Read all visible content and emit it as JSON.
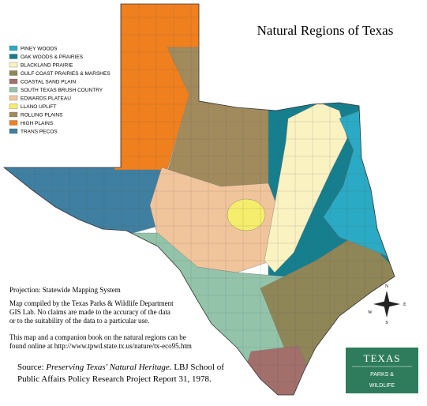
{
  "title": "Natural Regions of Texas",
  "legend": [
    {
      "label": "PINEY WOODS",
      "color": "#2aaac4"
    },
    {
      "label": "OAK WOODS & PRAIRIES",
      "color": "#157f8e"
    },
    {
      "label": "BLACKLAND PRAIRIE",
      "color": "#fbf2c2"
    },
    {
      "label": "GULF COAST PRAIRIES & MARSHES",
      "color": "#8e8656"
    },
    {
      "label": "COASTAL SAND PLAIN",
      "color": "#a36f6b"
    },
    {
      "label": "SOUTH TEXAS BRUSH COUNTRY",
      "color": "#93c4aa"
    },
    {
      "label": "EDWARDS PLATEAU",
      "color": "#f1c59c"
    },
    {
      "label": "LLANO UPLIFT",
      "color": "#f5ee6c"
    },
    {
      "label": "ROLLING PLAINS",
      "color": "#a18b5d"
    },
    {
      "label": "HIGH PLAINS",
      "color": "#f07f1e"
    },
    {
      "label": "TRANS PECOS",
      "color": "#3f7fa1"
    }
  ],
  "notes": {
    "projection": "Projection: Statewide Mapping System",
    "compiled": [
      "Map compiled by the Texas Parks & Wildlife Department",
      "GIS Lab. No claims are made to the accuracy of the data",
      "or to the suitability of the data to a particular use."
    ],
    "online": [
      "This map and a companion book on the natural regions can be",
      "found online at http://www.tpwd.state.tx.us/nature/tx-eco95.htm"
    ]
  },
  "source": {
    "label": "Source:",
    "title": "Preserving Texas' Natural Heritage.",
    "rest": "LBJ School of",
    "line2": "Public Affairs Policy Research Project Report 31, 1978."
  },
  "compass": {
    "n": "N",
    "s": "S",
    "e": "E",
    "w": "W"
  },
  "logo": {
    "name": "TEXAS",
    "line1": "PARKS &",
    "line2": "WILDLIFE"
  }
}
